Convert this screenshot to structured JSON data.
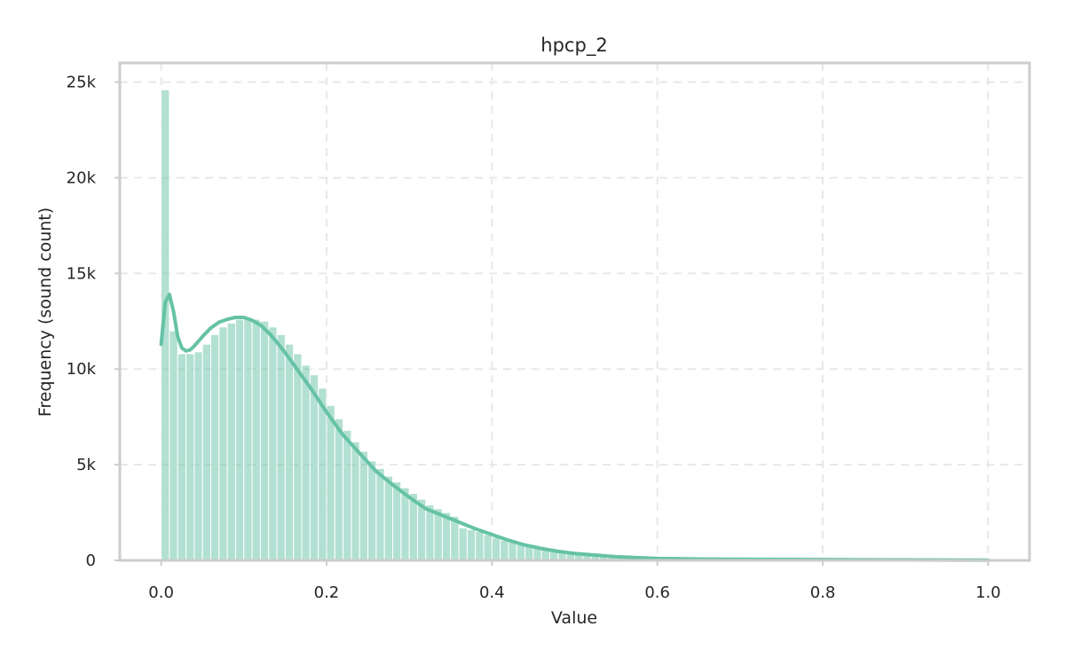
{
  "chart_data": {
    "type": "bar",
    "subtype": "histogram",
    "title": "hpcp_2",
    "xlabel": "Value",
    "ylabel": "Frequency (sound count)",
    "xlim": [
      -0.05,
      1.05
    ],
    "ylim": [
      0,
      26000
    ],
    "grid": true,
    "x_ticks": [
      0.0,
      0.2,
      0.4,
      0.6,
      0.8,
      1.0
    ],
    "x_tick_labels": [
      "0.0",
      "0.2",
      "0.4",
      "0.6",
      "0.8",
      "1.0"
    ],
    "y_ticks": [
      0,
      5000,
      10000,
      15000,
      20000,
      25000
    ],
    "y_tick_labels": [
      "0",
      "5k",
      "10k",
      "15k",
      "20k",
      "25k"
    ],
    "bin_start": 0.0,
    "bin_width": 0.01,
    "bar_color": "#66c2a5",
    "line_color": "#66c2a5",
    "values": [
      24600,
      12000,
      10800,
      10800,
      10900,
      11300,
      11800,
      12200,
      12400,
      12600,
      12700,
      12600,
      12500,
      12200,
      11800,
      11300,
      10800,
      10200,
      9700,
      9000,
      8100,
      7400,
      6800,
      6200,
      5700,
      5200,
      4800,
      4400,
      4100,
      3800,
      3500,
      3200,
      2900,
      2700,
      2500,
      2300,
      1700,
      1600,
      1500,
      1350,
      1200,
      1050,
      950,
      850,
      750,
      650,
      580,
      510,
      450,
      400,
      350,
      310,
      270,
      240,
      210,
      180,
      160,
      140,
      120,
      110,
      100,
      90,
      80,
      70,
      65,
      60,
      55,
      50,
      45,
      42,
      40,
      38,
      36,
      34,
      32,
      30,
      28,
      27,
      26,
      25,
      24,
      23,
      22,
      21,
      20,
      20,
      19,
      19,
      18,
      18,
      18,
      17,
      17,
      17,
      16,
      16,
      16,
      16,
      16,
      80
    ],
    "kde": {
      "x": [
        0.0,
        0.005,
        0.01,
        0.015,
        0.02,
        0.025,
        0.03,
        0.035,
        0.04,
        0.05,
        0.06,
        0.07,
        0.08,
        0.09,
        0.1,
        0.11,
        0.12,
        0.13,
        0.14,
        0.15,
        0.16,
        0.17,
        0.18,
        0.19,
        0.2,
        0.22,
        0.24,
        0.26,
        0.28,
        0.3,
        0.32,
        0.34,
        0.36,
        0.38,
        0.4,
        0.42,
        0.44,
        0.46,
        0.48,
        0.5,
        0.55,
        0.6,
        0.65,
        0.7,
        0.75,
        0.8,
        0.85,
        0.9,
        0.95,
        1.0
      ],
      "y": [
        11300,
        13500,
        13900,
        13000,
        11700,
        11100,
        10950,
        11000,
        11200,
        11700,
        12150,
        12450,
        12600,
        12700,
        12700,
        12550,
        12300,
        11900,
        11400,
        10850,
        10250,
        9650,
        9050,
        8400,
        7750,
        6550,
        5600,
        4650,
        3950,
        3300,
        2700,
        2350,
        2000,
        1650,
        1350,
        1050,
        800,
        620,
        470,
        360,
        190,
        100,
        70,
        55,
        45,
        40,
        30,
        25,
        15,
        10
      ]
    }
  }
}
